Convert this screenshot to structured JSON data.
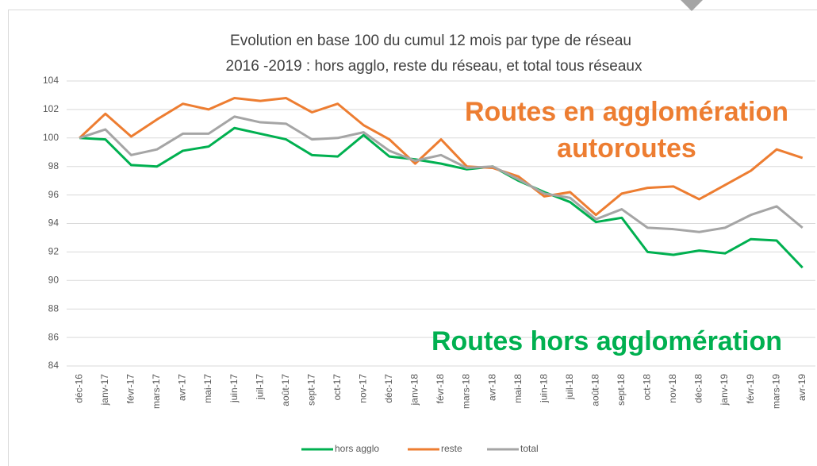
{
  "chart_data": {
    "type": "line",
    "title": "Evolution en base 100 du cumul 12 mois par type de réseau",
    "subtitle": "2016 -2019 : hors agglo, reste du réseau, et total tous réseaux",
    "categories": [
      "déc-16",
      "janv-17",
      "févr-17",
      "mars-17",
      "avr-17",
      "mai-17",
      "juin-17",
      "juil-17",
      "août-17",
      "sept-17",
      "oct-17",
      "nov-17",
      "déc-17",
      "janv-18",
      "févr-18",
      "mars-18",
      "avr-18",
      "mai-18",
      "juin-18",
      "juil-18",
      "août-18",
      "sept-18",
      "oct-18",
      "nov-18",
      "déc-18",
      "janv-19",
      "févr-19",
      "mars-19",
      "avr-19"
    ],
    "series": [
      {
        "name": "hors agglo",
        "color": "#00b050",
        "values": [
          100,
          99.9,
          98.1,
          98.0,
          99.1,
          99.4,
          100.7,
          100.3,
          99.9,
          98.8,
          98.7,
          100.2,
          98.7,
          98.5,
          98.2,
          97.8,
          98.0,
          97.0,
          96.2,
          95.5,
          94.1,
          94.4,
          92.0,
          91.8,
          92.1,
          91.9,
          92.9,
          92.8,
          90.9
        ]
      },
      {
        "name": "reste",
        "color": "#ed7d31",
        "values": [
          100,
          101.7,
          100.1,
          101.3,
          102.4,
          102.0,
          102.8,
          102.6,
          102.8,
          101.8,
          102.4,
          100.9,
          99.9,
          98.2,
          99.9,
          98.0,
          97.9,
          97.3,
          95.9,
          96.2,
          94.6,
          96.1,
          96.5,
          96.6,
          95.7,
          96.7,
          97.7,
          99.2,
          98.6
        ]
      },
      {
        "name": "total",
        "color": "#a5a5a5",
        "values": [
          100,
          100.6,
          98.8,
          99.2,
          100.3,
          100.3,
          101.5,
          101.1,
          101.0,
          99.9,
          100.0,
          100.4,
          99.1,
          98.4,
          98.8,
          97.9,
          98.0,
          97.1,
          96.1,
          95.8,
          94.3,
          95.0,
          93.7,
          93.6,
          93.4,
          93.7,
          94.6,
          95.2,
          93.7
        ]
      }
    ],
    "ylim": [
      84,
      104
    ],
    "yticks": [
      84,
      86,
      88,
      90,
      92,
      94,
      96,
      98,
      100,
      102,
      104
    ],
    "grid": true,
    "legend": "bottom",
    "annotations": [
      {
        "lines": [
          "Routes en agglomération",
          "autoroutes"
        ],
        "color": "#ed7d31"
      },
      {
        "lines": [
          "Routes hors agglomération"
        ],
        "color": "#00b050"
      }
    ]
  }
}
